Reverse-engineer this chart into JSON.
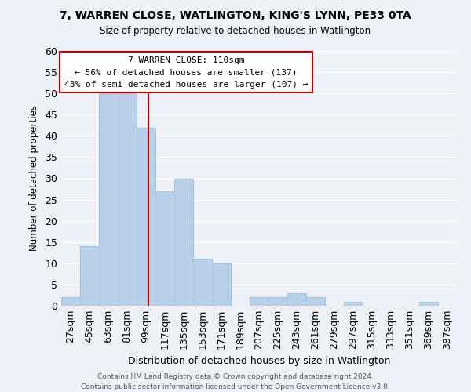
{
  "title": "7, WARREN CLOSE, WATLINGTON, KING'S LYNN, PE33 0TA",
  "subtitle": "Size of property relative to detached houses in Watlington",
  "xlabel": "Distribution of detached houses by size in Watlington",
  "ylabel": "Number of detached properties",
  "bin_labels": [
    "27sqm",
    "45sqm",
    "63sqm",
    "81sqm",
    "99sqm",
    "117sqm",
    "135sqm",
    "153sqm",
    "171sqm",
    "189sqm",
    "207sqm",
    "225sqm",
    "243sqm",
    "261sqm",
    "279sqm",
    "297sqm",
    "315sqm",
    "333sqm",
    "351sqm",
    "369sqm",
    "387sqm"
  ],
  "bar_values": [
    2,
    14,
    50,
    50,
    42,
    27,
    30,
    11,
    10,
    0,
    2,
    2,
    3,
    2,
    0,
    1,
    0,
    0,
    0,
    1,
    0
  ],
  "bar_left_edges": [
    27,
    45,
    63,
    81,
    99,
    117,
    135,
    153,
    171,
    189,
    207,
    225,
    243,
    261,
    279,
    297,
    315,
    333,
    351,
    369,
    387
  ],
  "bin_width": 18,
  "bar_color": "#b8d0e8",
  "bar_edge_color": "#aac4e0",
  "vline_x": 110,
  "vline_color": "#cc0000",
  "annotation_text_line1": "7 WARREN CLOSE: 110sqm",
  "annotation_text_line2": "← 56% of detached houses are smaller (137)",
  "annotation_text_line3": "43% of semi-detached houses are larger (107) →",
  "annotation_box_color": "#ffffff",
  "annotation_box_edge": "#cc0000",
  "ylim": [
    0,
    60
  ],
  "yticks": [
    0,
    5,
    10,
    15,
    20,
    25,
    30,
    35,
    40,
    45,
    50,
    55,
    60
  ],
  "background_color": "#eef2f8",
  "grid_color": "#ffffff",
  "footer_line1": "Contains HM Land Registry data © Crown copyright and database right 2024.",
  "footer_line2": "Contains public sector information licensed under the Open Government Licence v3.0."
}
